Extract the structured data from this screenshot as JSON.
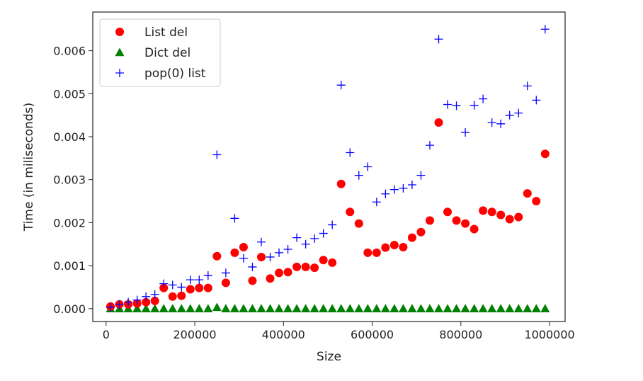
{
  "chart_data": {
    "type": "scatter",
    "title": "",
    "xlabel": "Size",
    "ylabel": "Time (in miliseconds)",
    "xlim": [
      -30000,
      1035000
    ],
    "ylim": [
      -0.0003,
      0.0069
    ],
    "xticks": [
      0,
      200000,
      400000,
      600000,
      800000,
      1000000
    ],
    "xtick_labels": [
      "0",
      "200000",
      "400000",
      "600000",
      "800000",
      "1000000"
    ],
    "yticks": [
      0.0,
      0.001,
      0.002,
      0.003,
      0.004,
      0.005,
      0.006
    ],
    "ytick_labels": [
      "0.000",
      "0.001",
      "0.002",
      "0.003",
      "0.004",
      "0.005",
      "0.006"
    ],
    "grid": false,
    "legend_position": "top-left",
    "x": [
      10000,
      30000,
      50000,
      70000,
      90000,
      110000,
      130000,
      150000,
      170000,
      190000,
      210000,
      230000,
      250000,
      270000,
      290000,
      310000,
      330000,
      350000,
      370000,
      390000,
      410000,
      430000,
      450000,
      470000,
      490000,
      510000,
      530000,
      550000,
      570000,
      590000,
      610000,
      630000,
      650000,
      670000,
      690000,
      710000,
      730000,
      750000,
      770000,
      790000,
      810000,
      830000,
      850000,
      870000,
      890000,
      910000,
      930000,
      950000,
      970000,
      990000
    ],
    "series": [
      {
        "name": "List del",
        "marker": "circle",
        "color": "#ff0000",
        "values": [
          5e-05,
          0.0001,
          0.0001,
          0.00012,
          0.00015,
          0.00018,
          0.00048,
          0.00028,
          0.0003,
          0.00045,
          0.00048,
          0.00048,
          0.00122,
          0.0006,
          0.0013,
          0.00143,
          0.00065,
          0.0012,
          0.0007,
          0.00083,
          0.00085,
          0.00097,
          0.00097,
          0.00095,
          0.00113,
          0.00107,
          0.0029,
          0.00225,
          0.00198,
          0.0013,
          0.0013,
          0.00142,
          0.00148,
          0.00143,
          0.00165,
          0.00178,
          0.00205,
          0.00433,
          0.00225,
          0.00205,
          0.00198,
          0.00185,
          0.00228,
          0.00225,
          0.00218,
          0.00208,
          0.00213,
          0.00268,
          0.0025,
          0.0036
        ]
      },
      {
        "name": "Dict del",
        "marker": "triangle",
        "color": "#008000",
        "values": [
          0.0,
          0.0,
          0.0,
          0.0,
          0.0,
          0.0,
          0.0,
          0.0,
          0.0,
          0.0,
          0.0,
          0.0,
          3e-05,
          0.0,
          0.0,
          0.0,
          0.0,
          0.0,
          0.0,
          0.0,
          0.0,
          0.0,
          0.0,
          0.0,
          0.0,
          0.0,
          0.0,
          0.0,
          0.0,
          0.0,
          0.0,
          0.0,
          0.0,
          0.0,
          0.0,
          0.0,
          0.0,
          0.0,
          0.0,
          0.0,
          0.0,
          0.0,
          0.0,
          0.0,
          0.0,
          0.0,
          0.0,
          0.0,
          0.0,
          0.0
        ]
      },
      {
        "name": "pop(0) list",
        "marker": "plus",
        "color": "#0000ff",
        "values": [
          3e-05,
          0.0001,
          0.00015,
          0.0002,
          0.00028,
          0.00033,
          0.00058,
          0.00055,
          0.0005,
          0.00067,
          0.00067,
          0.00077,
          0.00358,
          0.00083,
          0.0021,
          0.00117,
          0.00097,
          0.00155,
          0.0012,
          0.0013,
          0.00138,
          0.00165,
          0.0015,
          0.00163,
          0.00175,
          0.00195,
          0.0052,
          0.00363,
          0.0031,
          0.0033,
          0.00248,
          0.00267,
          0.00277,
          0.0028,
          0.00288,
          0.0031,
          0.0038,
          0.00627,
          0.00475,
          0.00472,
          0.0041,
          0.00473,
          0.00488,
          0.00433,
          0.0043,
          0.0045,
          0.00455,
          0.00518,
          0.00485,
          0.0065
        ]
      }
    ]
  }
}
